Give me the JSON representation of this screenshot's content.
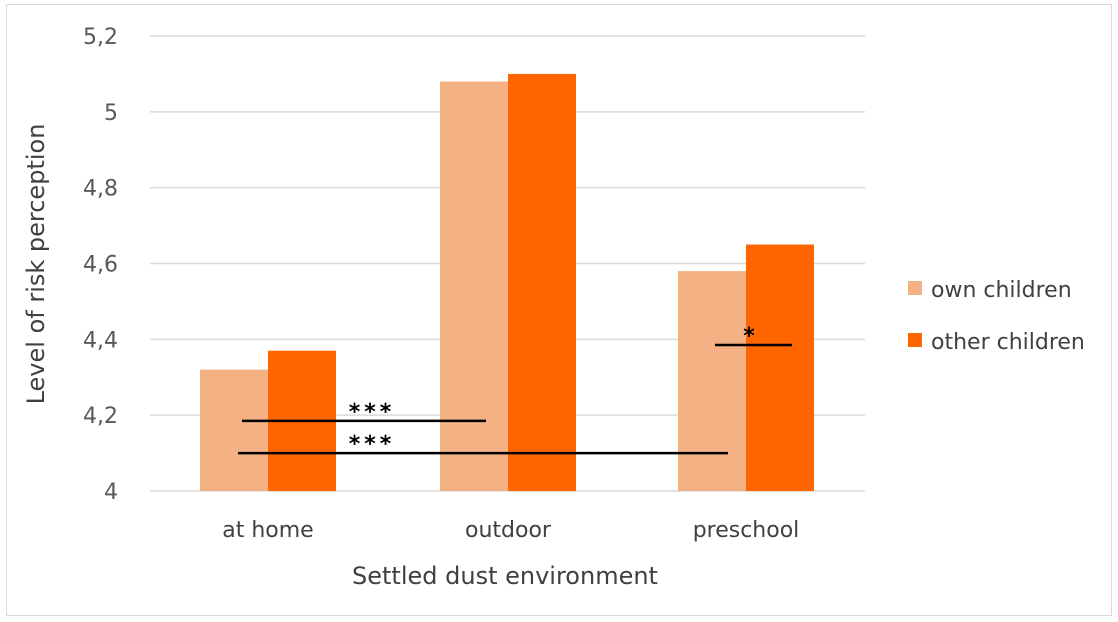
{
  "chart_data": {
    "type": "bar",
    "categories": [
      "at home",
      "outdoor",
      "preschool"
    ],
    "series": [
      {
        "name": "own children",
        "values": [
          4.32,
          5.08,
          4.58
        ],
        "color": "#f4b183"
      },
      {
        "name": "other children",
        "values": [
          4.37,
          5.1,
          4.65
        ],
        "color": "#ff6600"
      }
    ],
    "yticks": [
      "4",
      "4,2",
      "4,4",
      "4,6",
      "4,8",
      "5",
      "5,2"
    ],
    "ylim": [
      4,
      5.2
    ],
    "xlabel": "Settled dust environment",
    "ylabel": "Level of risk perception",
    "grid": true,
    "legend_position": "right",
    "significance": [
      {
        "label": "***",
        "from": "at home",
        "to": "outdoor",
        "y": 4.185
      },
      {
        "label": "***",
        "from": "at home",
        "to": "preschool",
        "y": 4.1
      },
      {
        "label": "*",
        "from": "preschool",
        "to": "preschool",
        "y": 4.385
      }
    ]
  }
}
